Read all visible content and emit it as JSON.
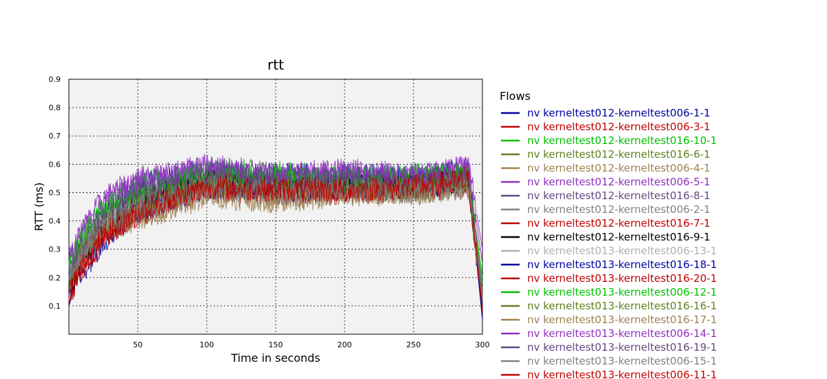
{
  "chart_data": {
    "type": "line",
    "title": "rtt",
    "xlabel": "Time in seconds",
    "ylabel": "RTT (ms)",
    "xlim": [
      0,
      300
    ],
    "ylim": [
      0,
      0.9
    ],
    "x_ticks": [
      50,
      100,
      150,
      200,
      250,
      300
    ],
    "y_ticks": [
      0.1,
      0.2,
      0.3,
      0.4,
      0.5,
      0.6,
      0.7,
      0.8,
      0.9
    ],
    "grid": true,
    "legend_title": "Flows",
    "legend_placement": "right",
    "series": [
      {
        "name": "nv kerneltest012-kerneltest006-1-1",
        "color": "#0000a0",
        "points": [
          [
            0,
            0.2
          ],
          [
            10,
            0.32
          ],
          [
            25,
            0.42
          ],
          [
            50,
            0.52
          ],
          [
            75,
            0.55
          ],
          [
            100,
            0.57
          ],
          [
            150,
            0.56
          ],
          [
            200,
            0.56
          ],
          [
            250,
            0.55
          ],
          [
            290,
            0.58
          ],
          [
            300,
            0.06
          ]
        ]
      },
      {
        "name": "nv kerneltest012-kerneltest006-3-1",
        "color": "#c00000",
        "points": [
          [
            0,
            0.15
          ],
          [
            10,
            0.25
          ],
          [
            25,
            0.35
          ],
          [
            50,
            0.45
          ],
          [
            75,
            0.5
          ],
          [
            100,
            0.54
          ],
          [
            150,
            0.53
          ],
          [
            200,
            0.52
          ],
          [
            250,
            0.53
          ],
          [
            290,
            0.56
          ],
          [
            300,
            0.1
          ]
        ]
      },
      {
        "name": "nv kerneltest012-kerneltest016-10-1",
        "color": "#00c000",
        "points": [
          [
            0,
            0.25
          ],
          [
            10,
            0.35
          ],
          [
            25,
            0.45
          ],
          [
            50,
            0.53
          ],
          [
            75,
            0.55
          ],
          [
            100,
            0.58
          ],
          [
            150,
            0.57
          ],
          [
            200,
            0.55
          ],
          [
            250,
            0.56
          ],
          [
            290,
            0.57
          ],
          [
            300,
            0.2
          ]
        ]
      },
      {
        "name": "nv kerneltest012-kerneltest016-6-1",
        "color": "#608020",
        "points": [
          [
            0,
            0.22
          ],
          [
            10,
            0.32
          ],
          [
            25,
            0.4
          ],
          [
            50,
            0.47
          ],
          [
            75,
            0.5
          ],
          [
            100,
            0.55
          ],
          [
            150,
            0.52
          ],
          [
            200,
            0.53
          ],
          [
            250,
            0.52
          ],
          [
            290,
            0.55
          ],
          [
            300,
            0.15
          ]
        ]
      },
      {
        "name": "nv kerneltest012-kerneltest006-4-1",
        "color": "#a08050",
        "points": [
          [
            0,
            0.18
          ],
          [
            10,
            0.28
          ],
          [
            25,
            0.38
          ],
          [
            50,
            0.42
          ],
          [
            75,
            0.45
          ],
          [
            100,
            0.5
          ],
          [
            150,
            0.48
          ],
          [
            200,
            0.5
          ],
          [
            250,
            0.51
          ],
          [
            290,
            0.53
          ],
          [
            300,
            0.12
          ]
        ]
      },
      {
        "name": "nv kerneltest012-kerneltest006-5-1",
        "color": "#9030c0",
        "points": [
          [
            0,
            0.26
          ],
          [
            10,
            0.36
          ],
          [
            25,
            0.47
          ],
          [
            50,
            0.54
          ],
          [
            75,
            0.56
          ],
          [
            100,
            0.59
          ],
          [
            150,
            0.55
          ],
          [
            200,
            0.57
          ],
          [
            250,
            0.55
          ],
          [
            290,
            0.59
          ],
          [
            300,
            0.25
          ]
        ]
      },
      {
        "name": "nv kerneltest012-kerneltest016-8-1",
        "color": "#604880",
        "points": [
          [
            0,
            0.21
          ],
          [
            10,
            0.3
          ],
          [
            25,
            0.41
          ],
          [
            50,
            0.48
          ],
          [
            75,
            0.52
          ],
          [
            100,
            0.55
          ],
          [
            150,
            0.53
          ],
          [
            200,
            0.54
          ],
          [
            250,
            0.53
          ],
          [
            290,
            0.55
          ],
          [
            300,
            0.14
          ]
        ]
      },
      {
        "name": "nv kerneltest012-kerneltest006-2-1",
        "color": "#808080",
        "points": [
          [
            0,
            0.19
          ],
          [
            10,
            0.29
          ],
          [
            25,
            0.37
          ],
          [
            50,
            0.43
          ],
          [
            75,
            0.47
          ],
          [
            100,
            0.51
          ],
          [
            150,
            0.5
          ],
          [
            200,
            0.5
          ],
          [
            250,
            0.5
          ],
          [
            290,
            0.52
          ],
          [
            300,
            0.11
          ]
        ]
      },
      {
        "name": "nv kerneltest012-kerneltest016-7-1",
        "color": "#c00000",
        "points": [
          [
            0,
            0.16
          ],
          [
            10,
            0.26
          ],
          [
            25,
            0.36
          ],
          [
            50,
            0.44
          ],
          [
            75,
            0.49
          ],
          [
            100,
            0.53
          ],
          [
            150,
            0.52
          ],
          [
            200,
            0.51
          ],
          [
            250,
            0.52
          ],
          [
            290,
            0.55
          ],
          [
            300,
            0.09
          ]
        ]
      },
      {
        "name": "nv kerneltest012-kerneltest016-9-1",
        "color": "#000000",
        "points": [
          [
            0,
            0.17
          ],
          [
            10,
            0.27
          ],
          [
            25,
            0.37
          ],
          [
            50,
            0.46
          ],
          [
            75,
            0.51
          ],
          [
            100,
            0.54
          ],
          [
            150,
            0.52
          ],
          [
            200,
            0.52
          ],
          [
            250,
            0.52
          ],
          [
            290,
            0.54
          ],
          [
            300,
            0.1
          ]
        ]
      },
      {
        "name": "nv kerneltest013-kerneltest006-13-1",
        "color": "#b0b0b0",
        "points": [
          [
            0,
            0.23
          ],
          [
            10,
            0.31
          ],
          [
            25,
            0.39
          ],
          [
            50,
            0.45
          ],
          [
            75,
            0.48
          ],
          [
            100,
            0.52
          ],
          [
            150,
            0.5
          ],
          [
            200,
            0.51
          ],
          [
            250,
            0.5
          ],
          [
            290,
            0.53
          ],
          [
            300,
            0.16
          ]
        ]
      },
      {
        "name": "nv kerneltest013-kerneltest016-18-1",
        "color": "#0000a0",
        "points": [
          [
            0,
            0.14
          ],
          [
            10,
            0.22
          ],
          [
            25,
            0.33
          ],
          [
            50,
            0.43
          ],
          [
            75,
            0.48
          ],
          [
            100,
            0.52
          ],
          [
            150,
            0.51
          ],
          [
            200,
            0.52
          ],
          [
            250,
            0.52
          ],
          [
            290,
            0.54
          ],
          [
            300,
            0.05
          ]
        ]
      },
      {
        "name": "nv kerneltest013-kerneltest016-20-1",
        "color": "#c00000",
        "points": [
          [
            0,
            0.13
          ],
          [
            10,
            0.23
          ],
          [
            25,
            0.34
          ],
          [
            50,
            0.42
          ],
          [
            75,
            0.47
          ],
          [
            100,
            0.51
          ],
          [
            150,
            0.5
          ],
          [
            200,
            0.5
          ],
          [
            250,
            0.51
          ],
          [
            290,
            0.53
          ],
          [
            300,
            0.08
          ]
        ]
      },
      {
        "name": "nv kerneltest013-kerneltest006-12-1",
        "color": "#00c000",
        "points": [
          [
            0,
            0.24
          ],
          [
            10,
            0.34
          ],
          [
            25,
            0.44
          ],
          [
            50,
            0.51
          ],
          [
            75,
            0.54
          ],
          [
            100,
            0.56
          ],
          [
            150,
            0.55
          ],
          [
            200,
            0.54
          ],
          [
            250,
            0.55
          ],
          [
            290,
            0.56
          ],
          [
            300,
            0.18
          ]
        ]
      },
      {
        "name": "nv kerneltest013-kerneltest016-16-1",
        "color": "#608020",
        "points": [
          [
            0,
            0.2
          ],
          [
            10,
            0.3
          ],
          [
            25,
            0.39
          ],
          [
            50,
            0.46
          ],
          [
            75,
            0.49
          ],
          [
            100,
            0.53
          ],
          [
            150,
            0.51
          ],
          [
            200,
            0.52
          ],
          [
            250,
            0.51
          ],
          [
            290,
            0.54
          ],
          [
            300,
            0.13
          ]
        ]
      },
      {
        "name": "nv kerneltest013-kerneltest016-17-1",
        "color": "#a08050",
        "points": [
          [
            0,
            0.18
          ],
          [
            10,
            0.27
          ],
          [
            25,
            0.36
          ],
          [
            50,
            0.41
          ],
          [
            75,
            0.44
          ],
          [
            100,
            0.49
          ],
          [
            150,
            0.47
          ],
          [
            200,
            0.49
          ],
          [
            250,
            0.5
          ],
          [
            290,
            0.52
          ],
          [
            300,
            0.12
          ]
        ]
      },
      {
        "name": "nv kerneltest013-kerneltest006-14-1",
        "color": "#9030c0",
        "points": [
          [
            0,
            0.27
          ],
          [
            10,
            0.37
          ],
          [
            25,
            0.48
          ],
          [
            50,
            0.55
          ],
          [
            75,
            0.57
          ],
          [
            100,
            0.6
          ],
          [
            150,
            0.56
          ],
          [
            200,
            0.58
          ],
          [
            250,
            0.56
          ],
          [
            290,
            0.6
          ],
          [
            300,
            0.3
          ]
        ]
      },
      {
        "name": "nv kerneltest013-kerneltest016-19-1",
        "color": "#604880",
        "points": [
          [
            0,
            0.22
          ],
          [
            10,
            0.31
          ],
          [
            25,
            0.42
          ],
          [
            50,
            0.49
          ],
          [
            75,
            0.53
          ],
          [
            100,
            0.56
          ],
          [
            150,
            0.54
          ],
          [
            200,
            0.55
          ],
          [
            250,
            0.54
          ],
          [
            290,
            0.56
          ],
          [
            300,
            0.15
          ]
        ]
      },
      {
        "name": "nv kerneltest013-kerneltest006-15-1",
        "color": "#808080",
        "points": [
          [
            0,
            0.2
          ],
          [
            10,
            0.3
          ],
          [
            25,
            0.38
          ],
          [
            50,
            0.44
          ],
          [
            75,
            0.48
          ],
          [
            100,
            0.52
          ],
          [
            150,
            0.5
          ],
          [
            200,
            0.51
          ],
          [
            250,
            0.51
          ],
          [
            290,
            0.53
          ],
          [
            300,
            0.12
          ]
        ]
      },
      {
        "name": "nv kerneltest013-kerneltest006-11-1",
        "color": "#c00000",
        "points": [
          [
            0,
            0.15
          ],
          [
            10,
            0.24
          ],
          [
            25,
            0.35
          ],
          [
            50,
            0.43
          ],
          [
            75,
            0.48
          ],
          [
            100,
            0.52
          ],
          [
            150,
            0.51
          ],
          [
            200,
            0.51
          ],
          [
            250,
            0.52
          ],
          [
            290,
            0.54
          ],
          [
            300,
            0.09
          ]
        ]
      }
    ]
  },
  "colors": {
    "plot_background": "#f2f2f2",
    "grid": "#000000"
  }
}
